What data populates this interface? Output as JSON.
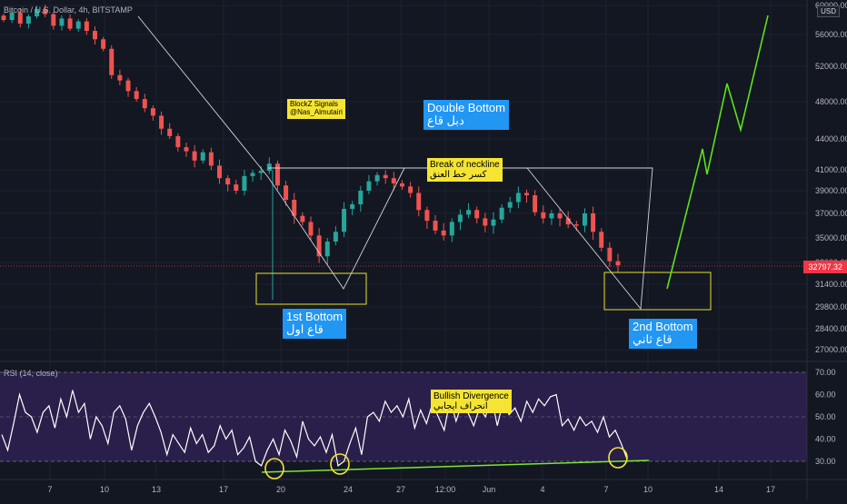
{
  "chart_data": {
    "type": "candlestick",
    "title": "Bitcoin / U.S. Dollar, 4h, BITSTAMP",
    "currency": "USD",
    "last_price_label": "32797.32",
    "price_ticks": [
      "60000.00",
      "56000.00",
      "52000.00",
      "48000.00",
      "44000.00",
      "41000.00",
      "39000.00",
      "37000.00",
      "35000.00",
      "33000.00",
      "31400.00",
      "29800.00",
      "28400.00",
      "27000.00"
    ],
    "price_tick_values": [
      60000,
      56000,
      52000,
      48000,
      44000,
      41000,
      39000,
      37000,
      35000,
      33000,
      31400,
      29800,
      28400,
      27000
    ],
    "x_ticks": [
      "7",
      "10",
      "13",
      "17",
      "20",
      "24",
      "27",
      "12:00",
      "Jun",
      "4",
      "7",
      "10",
      "14",
      "17"
    ],
    "candles_close_approx": [
      58000,
      59000,
      57500,
      58500,
      59500,
      58800,
      57200,
      58200,
      56800,
      57800,
      56500,
      55400,
      54200,
      51000,
      50400,
      49200,
      48300,
      47300,
      46500,
      45100,
      44300,
      43200,
      42800,
      41900,
      42700,
      41400,
      40200,
      39600,
      39000,
      40400,
      40700,
      40900,
      41600,
      39500,
      38200,
      36800,
      36300,
      35200,
      33500,
      34700,
      35500,
      37400,
      37800,
      39000,
      39900,
      40500,
      40200,
      39700,
      39400,
      38800,
      37300,
      36400,
      35600,
      35200,
      36300,
      36900,
      37300,
      36600,
      36000,
      36500,
      37500,
      38000,
      38800,
      38600,
      37100,
      36600,
      37000,
      36600,
      36100,
      36000,
      37000,
      35500,
      34200,
      33100,
      32797
    ],
    "projection_points": [
      [
        31200
      ],
      [
        33500
      ],
      [
        42000
      ],
      [
        40500
      ],
      [
        49500
      ],
      [
        45000
      ],
      [
        57500
      ]
    ],
    "neckline_price": 41300,
    "rsi": {
      "label": "RSI (14, close)",
      "ticks": [
        "70.00",
        "60.00",
        "50.00",
        "40.00",
        "30.00"
      ],
      "tick_values": [
        70,
        60,
        50,
        40,
        30
      ],
      "band": [
        30,
        70
      ],
      "values": [
        42,
        35,
        47,
        60,
        52,
        50,
        43,
        52,
        55,
        45,
        58,
        50,
        62,
        52,
        56,
        40,
        50,
        46,
        38,
        52,
        55,
        49,
        35,
        46,
        52,
        56,
        50,
        43,
        33,
        42,
        38,
        34,
        45,
        38,
        42,
        34,
        37,
        46,
        40,
        44,
        33,
        36,
        41,
        30,
        28,
        35,
        40,
        33,
        44,
        39,
        32,
        48,
        40,
        37,
        41,
        34,
        42,
        28,
        30,
        38,
        45,
        33,
        50,
        52,
        48,
        57,
        52,
        55,
        50,
        58,
        45,
        53,
        47,
        56,
        50,
        44,
        58,
        48,
        56,
        52,
        46,
        54,
        50,
        59,
        46,
        57,
        51,
        54,
        48,
        57,
        52,
        58,
        55,
        59,
        60,
        46,
        49,
        44,
        50,
        46,
        48,
        43,
        50,
        41,
        44,
        38,
        31
      ]
    },
    "annotations": {
      "signals_line1": "BlockZ Signals",
      "signals_line2": "@Nas_Almutairi",
      "double_bottom_en": "Double Bottom",
      "double_bottom_ar": "دبل قاع",
      "neckline_en": "Break of neckline",
      "neckline_ar": "كسر خط العنق",
      "bottom1_en": "1st Bottom",
      "bottom1_ar": "قاع اول",
      "bottom2_en": "2nd Bottom",
      "bottom2_ar": "قاع ثاني",
      "divergence_en": "Bullish Divergence",
      "divergence_ar": "انحراف ايجابي"
    },
    "colors": {
      "up": "#26a69a",
      "down": "#ef5350",
      "background": "#131722",
      "rsi_band": "#2a1f4a",
      "projection": "#5ee21b",
      "divergence_line": "#7fe33a",
      "highlight": "#f5e532"
    }
  }
}
